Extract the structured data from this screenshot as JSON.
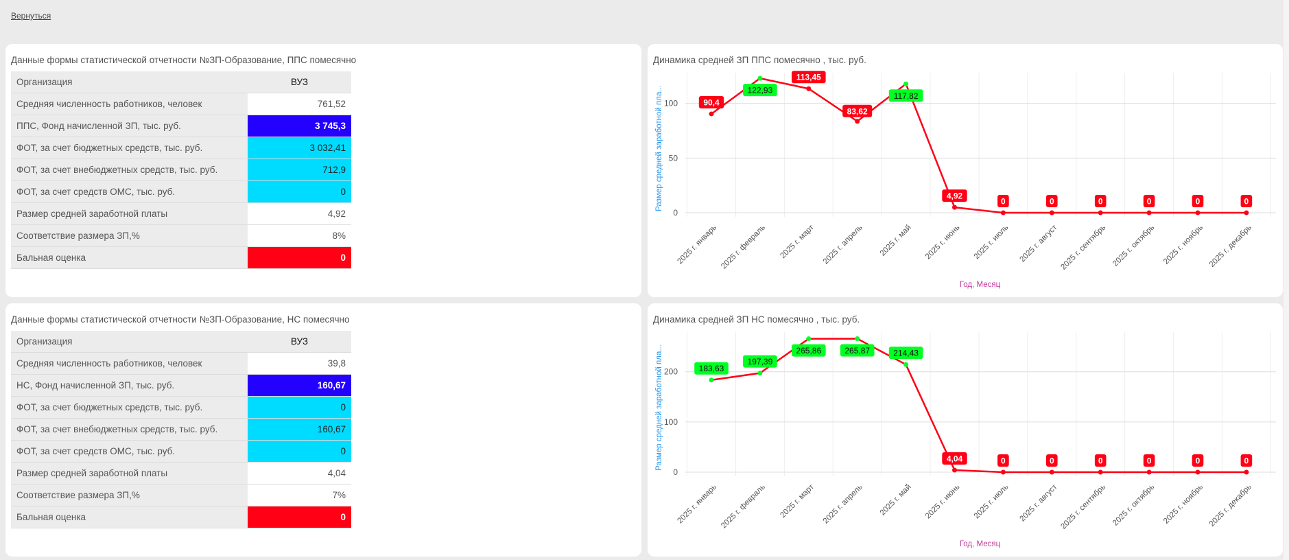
{
  "nav": {
    "back_label": "Вернуться"
  },
  "tables": [
    {
      "title": "Данные формы статистической отчетности №ЗП-Образование, ППС помесячно",
      "header": {
        "label": "Организация",
        "value": "ВУЗ"
      },
      "rows": [
        {
          "label": "Средняя численность работников,  человек",
          "value": "761,52",
          "style": "plain"
        },
        {
          "label": "ППС, Фонд начисленной ЗП, тыс. руб.",
          "value": "3 745,3",
          "style": "blue"
        },
        {
          "label": "ФОТ, за счет бюджетных средств, тыс. руб.",
          "value": "3 032,41",
          "style": "cyan"
        },
        {
          "label": "ФОТ, за счет внебюджетных средств, тыс. руб.",
          "value": "712,9",
          "style": "cyan"
        },
        {
          "label": "ФОТ, за счет средств ОМС, тыс. руб.",
          "value": "0",
          "style": "cyan"
        },
        {
          "label": "Размер средней заработной платы",
          "value": "4,92",
          "style": "plain"
        },
        {
          "label": "Соответствие размера ЗП,%",
          "value": "8%",
          "style": "plain"
        },
        {
          "label": "Бальная оценка",
          "value": "0",
          "style": "red"
        }
      ]
    },
    {
      "title": "Данные формы статистической отчетности №ЗП-Образование, НС помесячно",
      "header": {
        "label": "Организация",
        "value": "ВУЗ"
      },
      "rows": [
        {
          "label": "Средняя численность работников,  человек",
          "value": "39,8",
          "style": "plain"
        },
        {
          "label": "НС, Фонд начисленной ЗП, тыс. руб.",
          "value": "160,67",
          "style": "blue"
        },
        {
          "label": "ФОТ, за счет бюджетных средств, тыс. руб.",
          "value": "0",
          "style": "cyan"
        },
        {
          "label": "ФОТ, за счет внебюджетных средств, тыс. руб.",
          "value": "160,67",
          "style": "cyan"
        },
        {
          "label": "ФОТ, за счет средств ОМС, тыс. руб.",
          "value": "0",
          "style": "cyan"
        },
        {
          "label": "Размер средней заработной платы",
          "value": "4,04",
          "style": "plain"
        },
        {
          "label": "Соответствие размера ЗП,%",
          "value": "7%",
          "style": "plain"
        },
        {
          "label": "Бальная оценка",
          "value": "0",
          "style": "red"
        }
      ]
    }
  ],
  "colors": {
    "line": "#ff0015",
    "good": "#00ff22",
    "bad": "#ff0015",
    "yaxis_title": "#2196f3",
    "xaxis_title": "#c2379b"
  },
  "chart_data": [
    {
      "type": "line",
      "title": "Динамика средней ЗП ППС помесячно , тыс. руб.",
      "ylabel": "Размер средней заработной пла...",
      "xlabel": "Год, Месяц",
      "ylim": [
        0,
        123
      ],
      "yticks": [
        0,
        50,
        100
      ],
      "categories": [
        "2025 г. январь",
        "2025 г. февраль",
        "2025 г. март",
        "2025 г. апрель",
        "2025 г. май",
        "2025 г. июнь",
        "2025 г. июль",
        "2025 г. август",
        "2025 г. сентябрь",
        "2025 г. октябрь",
        "2025 г. ноябрь",
        "2025 г. декабрь"
      ],
      "values": [
        90.4,
        122.93,
        113.45,
        83.62,
        117.82,
        4.92,
        0,
        0,
        0,
        0,
        0,
        0
      ],
      "labels": [
        "90,4",
        "122,93",
        "113,45",
        "83,62",
        "117,82",
        "4,92",
        "0",
        "0",
        "0",
        "0",
        "0",
        "0"
      ],
      "status": [
        "bad",
        "good",
        "bad",
        "bad",
        "good",
        "bad",
        "bad",
        "bad",
        "bad",
        "bad",
        "bad",
        "bad"
      ]
    },
    {
      "type": "line",
      "title": "Динамика средней ЗП НС помесячно , тыс. руб.",
      "ylabel": "Размер средней заработной пла...",
      "xlabel": "Год, Месяц",
      "ylim": [
        0,
        268
      ],
      "yticks": [
        0,
        100,
        200
      ],
      "categories": [
        "2025 г. январь",
        "2025 г. февраль",
        "2025 г. март",
        "2025 г. апрель",
        "2025 г. май",
        "2025 г. июнь",
        "2025 г. июль",
        "2025 г. август",
        "2025 г. сентябрь",
        "2025 г. октябрь",
        "2025 г. ноябрь",
        "2025 г. декабрь"
      ],
      "values": [
        183.63,
        197.39,
        265.86,
        265.87,
        214.43,
        4.04,
        0,
        0,
        0,
        0,
        0,
        0
      ],
      "labels": [
        "183,63",
        "197,39",
        "265,86",
        "265,87",
        "214,43",
        "4,04",
        "0",
        "0",
        "0",
        "0",
        "0",
        "0"
      ],
      "status": [
        "good",
        "good",
        "good",
        "good",
        "good",
        "bad",
        "bad",
        "bad",
        "bad",
        "bad",
        "bad",
        "bad"
      ]
    }
  ]
}
